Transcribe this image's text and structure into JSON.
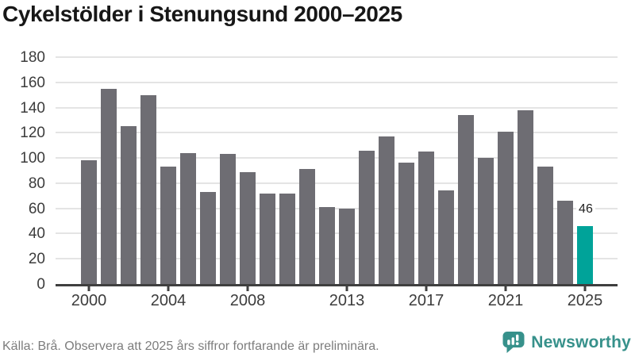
{
  "title": "Cykelstölder i Stenungsund 2000–2025",
  "footer": {
    "source": "Källa: Brå. Observera att 2025 års siffror fortfarande är preliminära.",
    "brand": "Newsworthy"
  },
  "colors": {
    "bar": "#6e6d73",
    "highlight": "#00a399",
    "brand_teal": "#37918b",
    "grid": "#e4e4e4",
    "axis": "#3f3f3f",
    "title_text": "#171717",
    "tick_text": "#3c3c3c",
    "footer_text": "#7d7d7d"
  },
  "chart_data": {
    "type": "bar",
    "title": "Cykelstölder i Stenungsund 2000–2025",
    "xlabel": "",
    "ylabel": "",
    "x": [
      2000,
      2001,
      2002,
      2003,
      2004,
      2005,
      2006,
      2007,
      2008,
      2009,
      2010,
      2011,
      2012,
      2013,
      2014,
      2015,
      2016,
      2017,
      2018,
      2019,
      2020,
      2021,
      2022,
      2023,
      2024,
      2025
    ],
    "values": [
      98,
      155,
      125,
      150,
      93,
      104,
      73,
      103,
      89,
      72,
      72,
      91,
      61,
      60,
      106,
      117,
      96,
      105,
      74,
      134,
      100,
      121,
      138,
      93,
      66,
      46
    ],
    "highlight_index": 25,
    "data_labels": [
      {
        "index": 25,
        "text": "46"
      }
    ],
    "xticks": [
      2000,
      2004,
      2008,
      2013,
      2017,
      2021,
      2025
    ],
    "yticks": [
      0,
      20,
      40,
      60,
      80,
      100,
      120,
      140,
      160,
      180
    ],
    "ylim": [
      0,
      180
    ],
    "grid": "horizontal",
    "legend": "none"
  }
}
